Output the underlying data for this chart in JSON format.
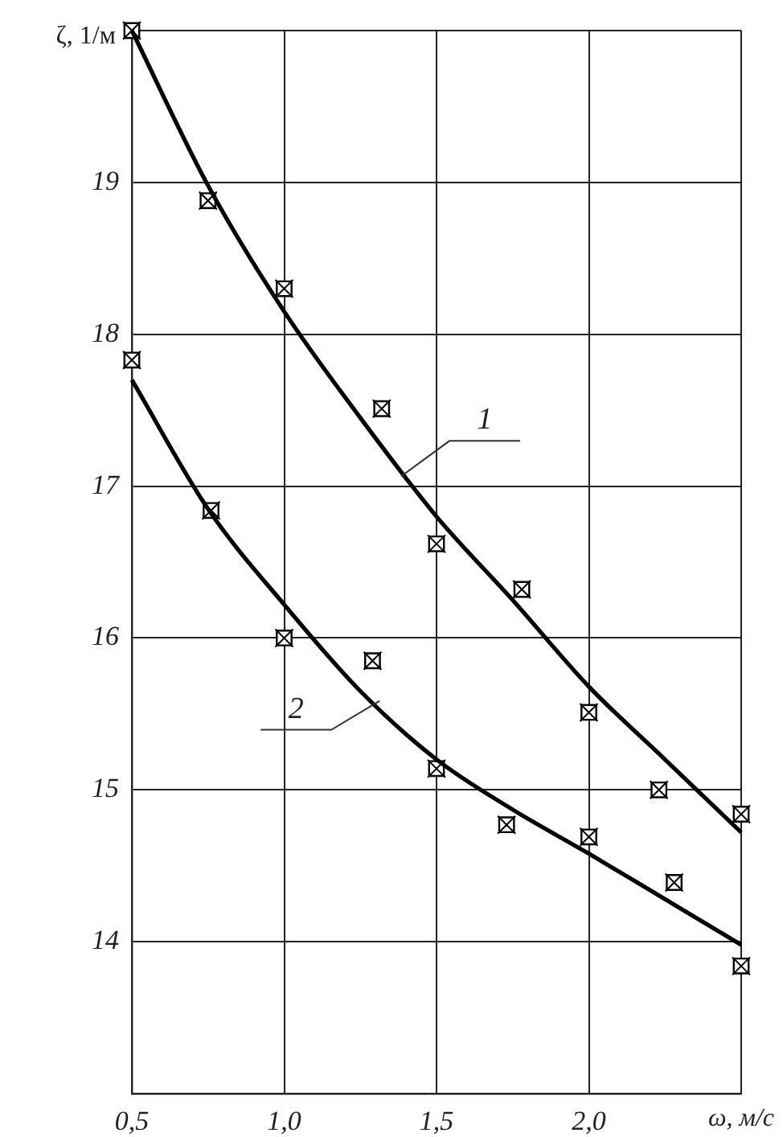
{
  "chart_data": {
    "type": "line",
    "xlabel": "ω, м/с",
    "ylabel": "ζ, 1/м",
    "xlim": [
      0.5,
      2.5
    ],
    "xticks": [
      {
        "value": 0.5,
        "label": "0,5"
      },
      {
        "value": 1.0,
        "label": "1,0"
      },
      {
        "value": 1.5,
        "label": "1,5"
      },
      {
        "value": 2.0,
        "label": "2,0"
      },
      {
        "value": 2.5,
        "label": null
      }
    ],
    "ylim": [
      13,
      20
    ],
    "yticks": [
      {
        "value": 13,
        "label": null
      },
      14,
      15,
      16,
      17,
      18,
      19,
      {
        "value": 20,
        "label": null
      }
    ],
    "grid": true,
    "legend": false,
    "series": [
      {
        "name": "1",
        "color": "#000000",
        "marker": "none",
        "x": [
          0.5,
          0.75,
          1.0,
          1.25,
          1.5,
          1.75,
          2.0,
          2.25,
          2.5
        ],
        "values": [
          20.0,
          18.98,
          18.15,
          17.45,
          16.8,
          16.25,
          15.68,
          15.2,
          14.72
        ]
      },
      {
        "name": "2",
        "color": "#000000",
        "marker": "none",
        "x": [
          0.5,
          0.75,
          1.0,
          1.25,
          1.5,
          1.75,
          2.0,
          2.25,
          2.5
        ],
        "values": [
          17.7,
          16.85,
          16.22,
          15.65,
          15.2,
          14.87,
          14.58,
          14.28,
          13.98
        ]
      },
      {
        "type": "scatter",
        "color": "#000000",
        "marker": "square",
        "x": [
          0.5,
          0.75,
          1.0,
          1.32,
          1.5,
          1.78,
          2.0,
          2.23,
          2.5
        ],
        "values": [
          20.0,
          18.88,
          18.3,
          17.51,
          16.62,
          16.32,
          15.51,
          15.0,
          14.84
        ]
      },
      {
        "type": "scatter",
        "color": "#000000",
        "marker": "square",
        "x": [
          0.5,
          0.76,
          1.0,
          1.29,
          1.5,
          1.73,
          2.0,
          2.28,
          2.5
        ],
        "values": [
          17.83,
          16.84,
          16.0,
          15.85,
          15.14,
          14.77,
          14.69,
          14.39,
          13.84
        ]
      }
    ]
  }
}
